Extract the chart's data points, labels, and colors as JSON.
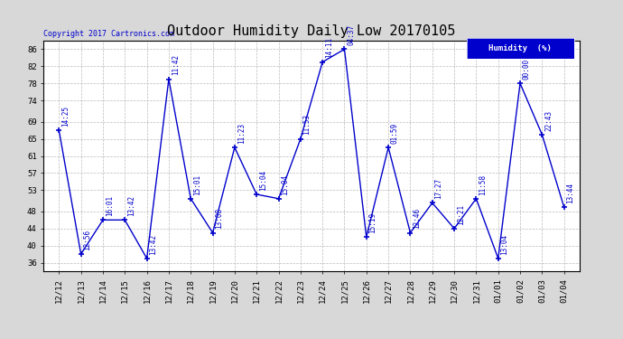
{
  "title": "Outdoor Humidity Daily Low 20170105",
  "copyright": "Copyright 2017 Cartronics.com",
  "legend_label": "Humidity  (%)",
  "ylabel_ticks": [
    36,
    40,
    44,
    48,
    53,
    57,
    61,
    65,
    69,
    74,
    78,
    82,
    86
  ],
  "xlabels": [
    "12/12",
    "12/13",
    "12/14",
    "12/15",
    "12/16",
    "12/17",
    "12/18",
    "12/19",
    "12/20",
    "12/21",
    "12/22",
    "12/23",
    "12/24",
    "12/25",
    "12/26",
    "12/27",
    "12/28",
    "12/29",
    "12/30",
    "12/31",
    "01/01",
    "01/02",
    "01/03",
    "01/04"
  ],
  "x_indices": [
    0,
    1,
    2,
    3,
    4,
    5,
    6,
    7,
    8,
    9,
    10,
    11,
    12,
    13,
    14,
    15,
    16,
    17,
    18,
    19,
    20,
    21,
    22,
    23
  ],
  "y_values": [
    67,
    38,
    46,
    46,
    37,
    79,
    51,
    43,
    63,
    52,
    51,
    65,
    83,
    86,
    42,
    63,
    43,
    50,
    44,
    51,
    37,
    78,
    66,
    49
  ],
  "point_labels": [
    "14:25",
    "12:56",
    "16:01",
    "13:42",
    "13:42",
    "11:42",
    "15:01",
    "13:08",
    "11:23",
    "15:04",
    "15:04",
    "11:53",
    "14:11",
    "04:37",
    "15:19",
    "01:59",
    "12:46",
    "17:27",
    "12:21",
    "11:58",
    "13:04",
    "00:00",
    "22:43",
    "13:44"
  ],
  "line_color": "#0000cc",
  "marker_color": "#000000",
  "bg_color": "#d8d8d8",
  "plot_bg_color": "#ffffff",
  "grid_color": "#aaaaaa",
  "legend_bg": "#0000cc",
  "legend_text_color": "#ffffff",
  "title_color": "#000000",
  "copyright_color": "#0000cc",
  "label_color": "#0000cc",
  "ylim": [
    34,
    88
  ],
  "label_fontsize": 5.5,
  "title_fontsize": 11,
  "tick_fontsize": 6.5,
  "copyright_fontsize": 6.0
}
